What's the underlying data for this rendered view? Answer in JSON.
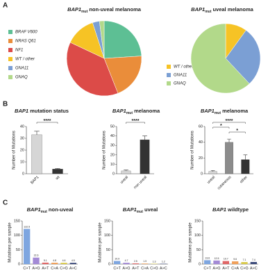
{
  "panels": [
    "A",
    "B",
    "C"
  ],
  "chart_data": [
    {
      "type": "pie",
      "title": [
        "BAP1",
        "mut",
        " non-uveal melanoma"
      ],
      "categories": [
        "BRAF V600",
        "NRAS Q61",
        "NF1",
        "WT / other",
        "GNA11",
        "GNAQ"
      ],
      "values": [
        24,
        20,
        38,
        13,
        3,
        2
      ],
      "colors": [
        "#5dbf94",
        "#ea8d3a",
        "#dc4b48",
        "#f6c325",
        "#7b9fd4",
        "#b2d98a"
      ]
    },
    {
      "type": "pie",
      "title": [
        "BAP1",
        "mut",
        " uveal melanoma"
      ],
      "categories": [
        "WT / other",
        "GNA11",
        "GNAQ"
      ],
      "values": [
        10,
        28,
        62
      ],
      "colors": [
        "#f6c325",
        "#7b9fd4",
        "#b2d98a"
      ]
    },
    {
      "type": "bar",
      "title": [
        "BAP1",
        " mutation status"
      ],
      "ylabel": "Number of Mutations",
      "categories": [
        "BAP1",
        "wt"
      ],
      "values": [
        33,
        4
      ],
      "errors": [
        3,
        0.5
      ],
      "colors": [
        "#d6d6d6",
        "#333333"
      ],
      "ylim": [
        0,
        40
      ],
      "yticks": [
        0,
        10,
        20,
        30,
        40
      ],
      "annotations": [
        "****"
      ]
    },
    {
      "type": "bar",
      "title": [
        "BAP1",
        "mut",
        " melanoma"
      ],
      "ylabel": "Number of Mutations",
      "categories": [
        "uveal",
        "non uveal"
      ],
      "values": [
        3,
        36
      ],
      "errors": [
        1,
        4
      ],
      "colors": [
        "#d6d6d6",
        "#333333"
      ],
      "ylim": [
        0,
        50
      ],
      "yticks": [
        0,
        10,
        20,
        30,
        40,
        50
      ],
      "annotations": [
        "****"
      ]
    },
    {
      "type": "bar",
      "title": [
        "BAP1",
        "mut",
        " melanoma"
      ],
      "ylabel": "Number of Mutations",
      "categories": [
        "uveal",
        "cutaneous",
        "other"
      ],
      "values": [
        3,
        40,
        18
      ],
      "errors": [
        1,
        4,
        6
      ],
      "colors": [
        "#d6d6d6",
        "#8c8c8c",
        "#333333"
      ],
      "ylim": [
        0,
        60
      ],
      "yticks": [
        0,
        20,
        40,
        60
      ],
      "annotations": [
        "****",
        "*",
        "*"
      ]
    },
    {
      "type": "bar",
      "title": [
        "BAP1",
        "mut",
        " non-uveal"
      ],
      "ylabel": "Mutations per sample",
      "categories": [
        "C>T",
        "A>G",
        "A>T",
        "C>A",
        "C>G",
        "A>C"
      ],
      "values": [
        122.5,
        22.6,
        5.1,
        4.8,
        4.6,
        4.5
      ],
      "colors": [
        "#7ea6e0",
        "#a38ad6",
        "#e06666",
        "#f0a05a",
        "#d9c94a",
        "#3b4a7a"
      ],
      "ylim": [
        0,
        150
      ],
      "yticks": [
        0,
        50,
        100,
        150
      ]
    },
    {
      "type": "bar",
      "title": [
        "BAP1",
        "mut",
        " uveal"
      ],
      "ylabel": "Mutations per sample",
      "categories": [
        "C>T",
        "A>G",
        "A>T",
        "C>A",
        "C>G",
        "A>C"
      ],
      "values": [
        10.9,
        4.7,
        2.5,
        1.9,
        1.3,
        1.2
      ],
      "colors": [
        "#7ea6e0",
        "#a38ad6",
        "#e06666",
        "#f0a05a",
        "#d9c94a",
        "#3b4a7a"
      ],
      "ylim": [
        0,
        150
      ],
      "yticks": [
        0,
        50,
        100,
        150
      ]
    },
    {
      "type": "bar",
      "title": [
        "BAP1",
        " wildtype"
      ],
      "ylabel": "Mutations per sample",
      "categories": [
        "C>T",
        "A>G",
        "A>T",
        "C>A",
        "C>G",
        "A>C"
      ],
      "values": [
        13.6,
        12.5,
        10.7,
        9.6,
        7.1,
        7.4
      ],
      "colors": [
        "#7ea6e0",
        "#a38ad6",
        "#e06666",
        "#f0a05a",
        "#d9c94a",
        "#3b4a7a"
      ],
      "ylim": [
        0,
        150
      ],
      "yticks": [
        0,
        50,
        100,
        150
      ]
    }
  ]
}
